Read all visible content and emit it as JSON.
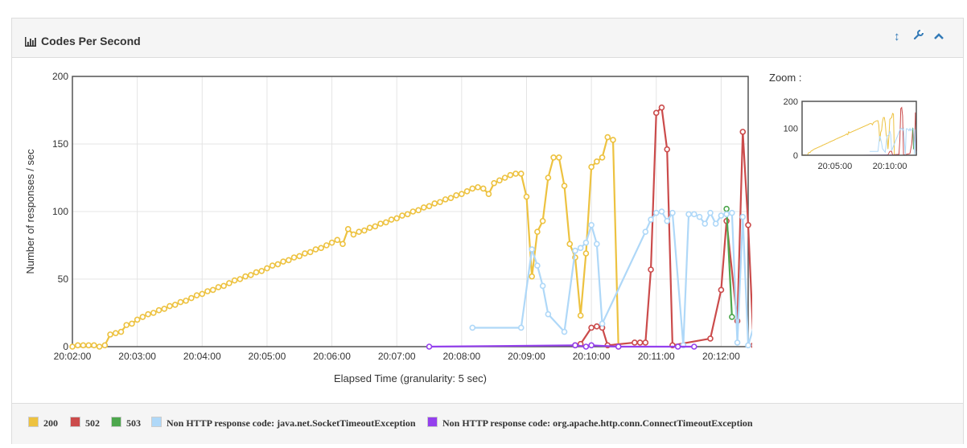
{
  "panel": {
    "title": "Codes Per Second",
    "zoom_label": "Zoom :"
  },
  "icons": {
    "title": "bar-chart-icon",
    "resize": "resize-vertical-icon",
    "settings": "wrench-icon",
    "collapse": "chevron-up-icon"
  },
  "colors": {
    "200": "#edc240",
    "502": "#cb4b4b",
    "503": "#4da74d",
    "socket": "#afd8f8",
    "connect": "#9440ed"
  },
  "chart_data": {
    "type": "line",
    "title": "",
    "xlabel": "Elapsed Time (granularity: 5 sec)",
    "ylabel": "Number of responses / sec",
    "x_unit": "time (HH:MM:SS)",
    "xlim": [
      "20:02:00",
      "20:12:25"
    ],
    "ylim": [
      0,
      200
    ],
    "xticks": [
      "20:02:00",
      "20:03:00",
      "20:04:00",
      "20:05:00",
      "20:06:00",
      "20:07:00",
      "20:08:00",
      "20:09:00",
      "20:10:00",
      "20:11:00",
      "20:12:00"
    ],
    "yticks": [
      0,
      50,
      100,
      150,
      200
    ],
    "grid": true,
    "legend_position": "bottom",
    "series": [
      {
        "name": "200",
        "color": "#edc240",
        "points": [
          [
            "20:02:00",
            0
          ],
          [
            "20:02:05",
            1
          ],
          [
            "20:02:10",
            1
          ],
          [
            "20:02:15",
            1
          ],
          [
            "20:02:20",
            1
          ],
          [
            "20:02:25",
            0
          ],
          [
            "20:02:30",
            1
          ],
          [
            "20:02:35",
            9
          ],
          [
            "20:02:40",
            10
          ],
          [
            "20:02:45",
            11
          ],
          [
            "20:02:50",
            16
          ],
          [
            "20:02:55",
            17
          ],
          [
            "20:03:00",
            20
          ],
          [
            "20:03:05",
            22
          ],
          [
            "20:03:10",
            24
          ],
          [
            "20:03:15",
            25
          ],
          [
            "20:03:20",
            27
          ],
          [
            "20:03:25",
            28
          ],
          [
            "20:03:30",
            30
          ],
          [
            "20:03:35",
            31
          ],
          [
            "20:03:40",
            33
          ],
          [
            "20:03:45",
            34
          ],
          [
            "20:03:50",
            36
          ],
          [
            "20:03:55",
            38
          ],
          [
            "20:04:00",
            39
          ],
          [
            "20:04:05",
            41
          ],
          [
            "20:04:10",
            42
          ],
          [
            "20:04:15",
            44
          ],
          [
            "20:04:20",
            45
          ],
          [
            "20:04:25",
            47
          ],
          [
            "20:04:30",
            49
          ],
          [
            "20:04:35",
            50
          ],
          [
            "20:04:40",
            52
          ],
          [
            "20:04:45",
            53
          ],
          [
            "20:04:50",
            55
          ],
          [
            "20:04:55",
            56
          ],
          [
            "20:05:00",
            58
          ],
          [
            "20:05:05",
            60
          ],
          [
            "20:05:10",
            61
          ],
          [
            "20:05:15",
            63
          ],
          [
            "20:05:20",
            64
          ],
          [
            "20:05:25",
            66
          ],
          [
            "20:05:30",
            67
          ],
          [
            "20:05:35",
            69
          ],
          [
            "20:05:40",
            70
          ],
          [
            "20:05:45",
            72
          ],
          [
            "20:05:50",
            73
          ],
          [
            "20:05:55",
            75
          ],
          [
            "20:06:00",
            77
          ],
          [
            "20:06:05",
            79
          ],
          [
            "20:06:10",
            76
          ],
          [
            "20:06:15",
            87
          ],
          [
            "20:06:20",
            83
          ],
          [
            "20:06:25",
            85
          ],
          [
            "20:06:30",
            86
          ],
          [
            "20:06:35",
            88
          ],
          [
            "20:06:40",
            89
          ],
          [
            "20:06:45",
            91
          ],
          [
            "20:06:50",
            92
          ],
          [
            "20:06:55",
            94
          ],
          [
            "20:07:00",
            95
          ],
          [
            "20:07:05",
            97
          ],
          [
            "20:07:10",
            98
          ],
          [
            "20:07:15",
            100
          ],
          [
            "20:07:20",
            101
          ],
          [
            "20:07:25",
            103
          ],
          [
            "20:07:30",
            104
          ],
          [
            "20:07:35",
            106
          ],
          [
            "20:07:40",
            107
          ],
          [
            "20:07:45",
            109
          ],
          [
            "20:07:50",
            110
          ],
          [
            "20:07:55",
            112
          ],
          [
            "20:08:00",
            113
          ],
          [
            "20:08:05",
            115
          ],
          [
            "20:08:10",
            117
          ],
          [
            "20:08:15",
            118
          ],
          [
            "20:08:20",
            117
          ],
          [
            "20:08:25",
            113
          ],
          [
            "20:08:30",
            121
          ],
          [
            "20:08:35",
            123
          ],
          [
            "20:08:40",
            125
          ],
          [
            "20:08:45",
            127
          ],
          [
            "20:08:50",
            128
          ],
          [
            "20:08:55",
            128
          ],
          [
            "20:09:00",
            111
          ],
          [
            "20:09:05",
            52
          ],
          [
            "20:09:10",
            85
          ],
          [
            "20:09:15",
            93
          ],
          [
            "20:09:20",
            125
          ],
          [
            "20:09:25",
            140
          ],
          [
            "20:09:30",
            140
          ],
          [
            "20:09:35",
            119
          ],
          [
            "20:09:40",
            76
          ],
          [
            "20:09:45",
            66
          ],
          [
            "20:09:50",
            23
          ],
          [
            "20:09:55",
            69
          ],
          [
            "20:10:00",
            133
          ],
          [
            "20:10:05",
            137
          ],
          [
            "20:10:10",
            140
          ],
          [
            "20:10:15",
            155
          ],
          [
            "20:10:20",
            153
          ],
          [
            "20:10:25",
            0
          ]
        ]
      },
      {
        "name": "502",
        "color": "#cb4b4b",
        "points": [
          [
            "20:09:45",
            1
          ],
          [
            "20:09:50",
            2
          ],
          [
            "20:10:00",
            14
          ],
          [
            "20:10:05",
            15
          ],
          [
            "20:10:10",
            14
          ],
          [
            "20:10:15",
            1
          ],
          [
            "20:10:40",
            3
          ],
          [
            "20:10:45",
            3
          ],
          [
            "20:10:50",
            3
          ],
          [
            "20:10:55",
            57
          ],
          [
            "20:11:00",
            173
          ],
          [
            "20:11:05",
            177
          ],
          [
            "20:11:10",
            146
          ],
          [
            "20:11:15",
            1
          ],
          [
            "20:11:50",
            6
          ],
          [
            "20:12:00",
            42
          ],
          [
            "20:12:05",
            93
          ],
          [
            "20:12:15",
            19
          ],
          [
            "20:12:20",
            159
          ],
          [
            "20:12:25",
            90
          ],
          [
            "20:12:30",
            1
          ]
        ]
      },
      {
        "name": "503",
        "color": "#4da74d",
        "points": [
          [
            "20:12:05",
            102
          ],
          [
            "20:12:10",
            22
          ]
        ]
      },
      {
        "name": "Non HTTP response code: java.net.SocketTimeoutException",
        "color": "#afd8f8",
        "points": [
          [
            "20:08:10",
            14
          ],
          [
            "20:08:55",
            14
          ],
          [
            "20:09:05",
            72
          ],
          [
            "20:09:10",
            60
          ],
          [
            "20:09:15",
            45
          ],
          [
            "20:09:20",
            24
          ],
          [
            "20:09:35",
            11
          ],
          [
            "20:09:45",
            71
          ],
          [
            "20:09:50",
            73
          ],
          [
            "20:09:55",
            77
          ],
          [
            "20:10:00",
            90
          ],
          [
            "20:10:05",
            76
          ],
          [
            "20:10:10",
            17
          ],
          [
            "20:10:50",
            85
          ],
          [
            "20:10:55",
            94
          ],
          [
            "20:11:00",
            99
          ],
          [
            "20:11:05",
            100
          ],
          [
            "20:11:10",
            93
          ],
          [
            "20:11:15",
            99
          ],
          [
            "20:11:25",
            1
          ],
          [
            "20:11:30",
            98
          ],
          [
            "20:11:35",
            98
          ],
          [
            "20:11:40",
            96
          ],
          [
            "20:11:45",
            91
          ],
          [
            "20:11:50",
            99
          ],
          [
            "20:11:55",
            91
          ],
          [
            "20:12:00",
            97
          ],
          [
            "20:12:05",
            98
          ],
          [
            "20:12:10",
            99
          ],
          [
            "20:12:15",
            3
          ],
          [
            "20:12:20",
            96
          ],
          [
            "20:12:25",
            1
          ],
          [
            "20:12:35",
            28
          ],
          [
            "20:12:40",
            1
          ]
        ]
      },
      {
        "name": "Non HTTP response code: org.apache.http.conn.ConnectTimeoutException",
        "color": "#9440ed",
        "points": [
          [
            "20:07:30",
            0
          ],
          [
            "20:09:45",
            1
          ],
          [
            "20:09:55",
            0
          ],
          [
            "20:10:00",
            1
          ],
          [
            "20:10:25",
            0
          ],
          [
            "20:11:20",
            0
          ],
          [
            "20:11:35",
            0
          ]
        ]
      }
    ],
    "zoom_overview": {
      "yticks": [
        0,
        100,
        200
      ],
      "xticks": [
        "20:05:00",
        "20:10:00"
      ]
    }
  },
  "legend": [
    {
      "label": "200",
      "color": "#edc240"
    },
    {
      "label": "502",
      "color": "#cb4b4b"
    },
    {
      "label": "503",
      "color": "#4da74d"
    },
    {
      "label": "Non HTTP response code: java.net.SocketTimeoutException",
      "color": "#afd8f8"
    },
    {
      "label": "Non HTTP response code: org.apache.http.conn.ConnectTimeoutException",
      "color": "#9440ed"
    }
  ]
}
